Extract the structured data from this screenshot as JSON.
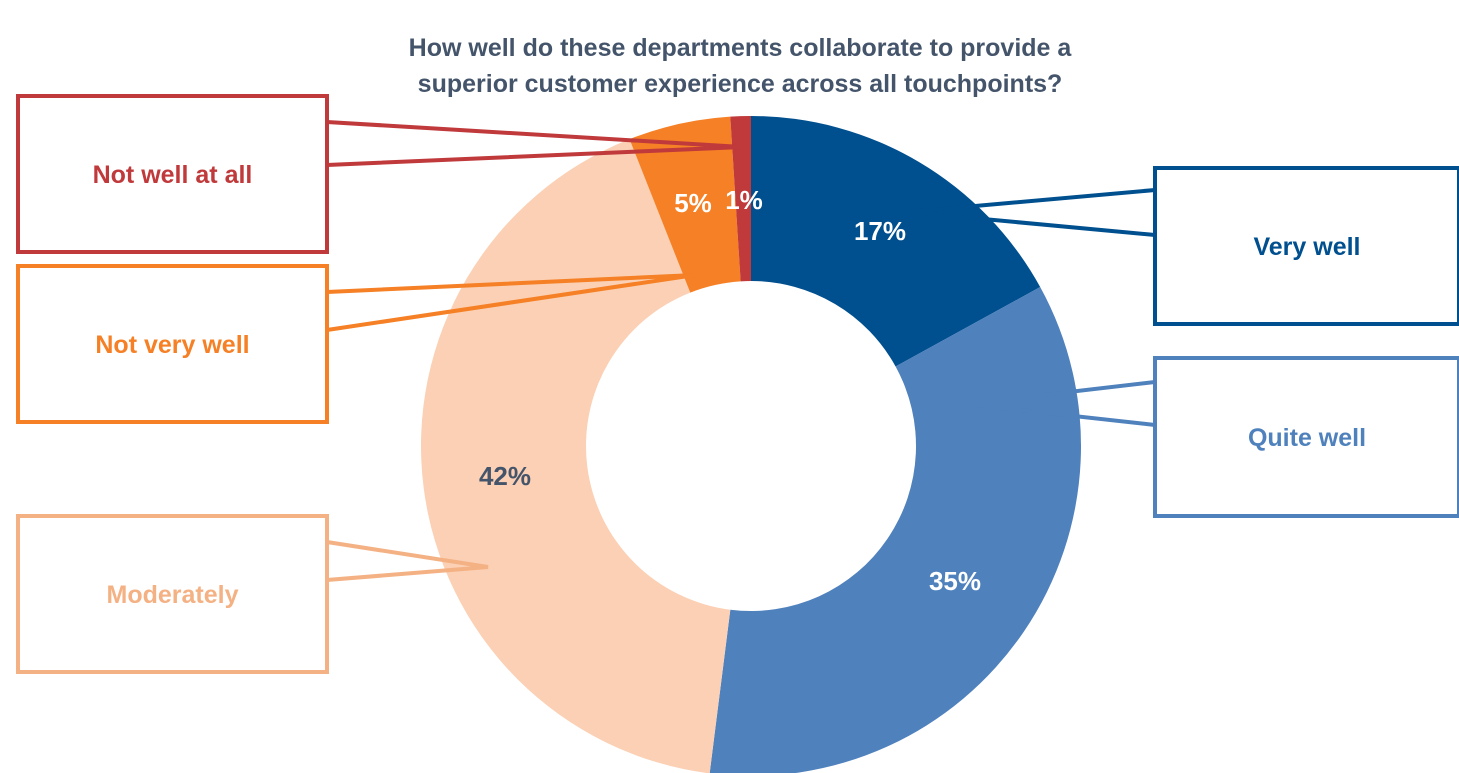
{
  "chart_data": {
    "type": "pie",
    "variant": "donut",
    "title": "How well do these departments collaborate to provide a superior customer experience across all touchpoints?",
    "title_lines": [
      "How well do these departments collaborate to provide a",
      "superior customer experience across all touchpoints?"
    ],
    "slices": [
      {
        "label": "Very well",
        "value": 17,
        "value_label": "17%",
        "color": "#004f8f",
        "value_label_color": "#ffffff"
      },
      {
        "label": "Quite well",
        "value": 35,
        "value_label": "35%",
        "color": "#4f81bd",
        "value_label_color": "#ffffff"
      },
      {
        "label": "Moderately",
        "value": 42,
        "value_label": "42%",
        "color": "#fbd0b4",
        "value_label_color": "#44546a",
        "text_color": "#f4b183"
      },
      {
        "label": "Not very well",
        "value": 5,
        "value_label": "5%",
        "color": "#f58025",
        "value_label_color": "#ffffff"
      },
      {
        "label": "Not well at all",
        "value": 1,
        "value_label": "1%",
        "color": "#c0393b",
        "value_label_color": "#ffffff"
      }
    ],
    "start": "12 o'clock",
    "direction": "clockwise",
    "legend": "callout boxes"
  }
}
